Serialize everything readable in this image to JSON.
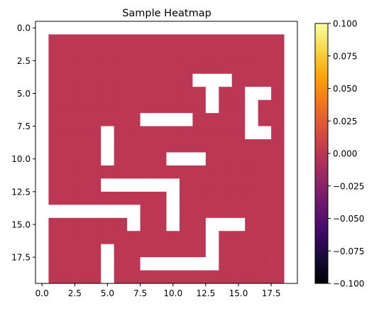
{
  "chart_data": {
    "type": "heatmap",
    "title": "Sample Heatmap",
    "xlabel": "",
    "ylabel": "",
    "grid_shape": [
      20,
      20
    ],
    "xlim": [
      -0.5,
      19.5
    ],
    "ylim": [
      19.5,
      -0.5
    ],
    "x_ticks": [
      "0.0",
      "2.5",
      "5.0",
      "7.5",
      "10.0",
      "12.5",
      "15.0",
      "17.5"
    ],
    "y_ticks": [
      "0.0",
      "2.5",
      "5.0",
      "7.5",
      "10.0",
      "12.5",
      "15.0",
      "17.5"
    ],
    "colormap": "inferno",
    "colorbar": {
      "min": -0.1,
      "max": 0.1,
      "ticks": [
        "0.100",
        "0.075",
        "0.050",
        "0.025",
        "0.000",
        "−0.025",
        "−0.050",
        "−0.075",
        "−0.100"
      ]
    },
    "cell_value": 0.0,
    "cell_color": "#bc3754",
    "empty_color": "#ffffff",
    "matrix": [
      [
        0,
        0,
        0,
        0,
        0,
        0,
        0,
        0,
        0,
        0,
        0,
        0,
        0,
        0,
        0,
        0,
        0,
        0,
        0,
        0
      ],
      [
        0,
        1,
        1,
        1,
        1,
        1,
        1,
        1,
        1,
        1,
        1,
        1,
        1,
        1,
        1,
        1,
        1,
        1,
        1,
        0
      ],
      [
        0,
        1,
        1,
        1,
        1,
        1,
        1,
        1,
        1,
        1,
        1,
        1,
        1,
        1,
        1,
        1,
        1,
        1,
        1,
        0
      ],
      [
        0,
        1,
        1,
        1,
        1,
        1,
        1,
        1,
        1,
        1,
        1,
        1,
        1,
        1,
        1,
        1,
        1,
        1,
        1,
        0
      ],
      [
        0,
        1,
        1,
        1,
        1,
        1,
        1,
        1,
        1,
        1,
        1,
        1,
        0,
        0,
        0,
        1,
        1,
        1,
        1,
        0
      ],
      [
        0,
        1,
        1,
        1,
        1,
        1,
        1,
        1,
        1,
        1,
        1,
        1,
        1,
        0,
        1,
        1,
        0,
        0,
        1,
        0
      ],
      [
        0,
        1,
        1,
        1,
        1,
        1,
        1,
        1,
        1,
        1,
        1,
        1,
        1,
        0,
        1,
        1,
        0,
        1,
        1,
        0
      ],
      [
        0,
        1,
        1,
        1,
        1,
        1,
        1,
        1,
        0,
        0,
        0,
        0,
        1,
        1,
        1,
        1,
        0,
        1,
        1,
        0
      ],
      [
        0,
        1,
        1,
        1,
        1,
        0,
        1,
        1,
        1,
        1,
        1,
        1,
        1,
        1,
        1,
        1,
        0,
        0,
        1,
        0
      ],
      [
        0,
        1,
        1,
        1,
        1,
        0,
        1,
        1,
        1,
        1,
        1,
        1,
        1,
        1,
        1,
        1,
        1,
        1,
        1,
        0
      ],
      [
        0,
        1,
        1,
        1,
        1,
        0,
        1,
        1,
        1,
        1,
        0,
        0,
        0,
        1,
        1,
        1,
        1,
        1,
        1,
        0
      ],
      [
        0,
        1,
        1,
        1,
        1,
        1,
        1,
        1,
        1,
        1,
        1,
        1,
        1,
        1,
        1,
        1,
        1,
        1,
        1,
        0
      ],
      [
        0,
        1,
        1,
        1,
        1,
        0,
        0,
        0,
        0,
        0,
        0,
        1,
        1,
        1,
        1,
        1,
        1,
        1,
        1,
        0
      ],
      [
        0,
        1,
        1,
        1,
        1,
        1,
        1,
        1,
        1,
        1,
        0,
        1,
        1,
        1,
        1,
        1,
        1,
        1,
        1,
        0
      ],
      [
        0,
        0,
        0,
        0,
        0,
        0,
        0,
        0,
        1,
        1,
        0,
        1,
        1,
        1,
        1,
        1,
        1,
        1,
        1,
        0
      ],
      [
        0,
        1,
        1,
        1,
        1,
        1,
        1,
        0,
        1,
        1,
        0,
        1,
        1,
        0,
        0,
        0,
        1,
        1,
        1,
        0
      ],
      [
        0,
        1,
        1,
        1,
        1,
        1,
        1,
        1,
        1,
        1,
        1,
        1,
        1,
        0,
        1,
        1,
        1,
        1,
        1,
        0
      ],
      [
        0,
        1,
        1,
        1,
        1,
        0,
        1,
        1,
        1,
        1,
        1,
        1,
        1,
        0,
        1,
        1,
        1,
        1,
        1,
        0
      ],
      [
        0,
        1,
        1,
        1,
        1,
        0,
        1,
        1,
        0,
        0,
        0,
        0,
        0,
        0,
        1,
        1,
        1,
        1,
        1,
        0
      ],
      [
        0,
        1,
        1,
        1,
        1,
        0,
        1,
        1,
        1,
        1,
        1,
        1,
        1,
        1,
        1,
        1,
        1,
        1,
        1,
        0
      ]
    ]
  }
}
